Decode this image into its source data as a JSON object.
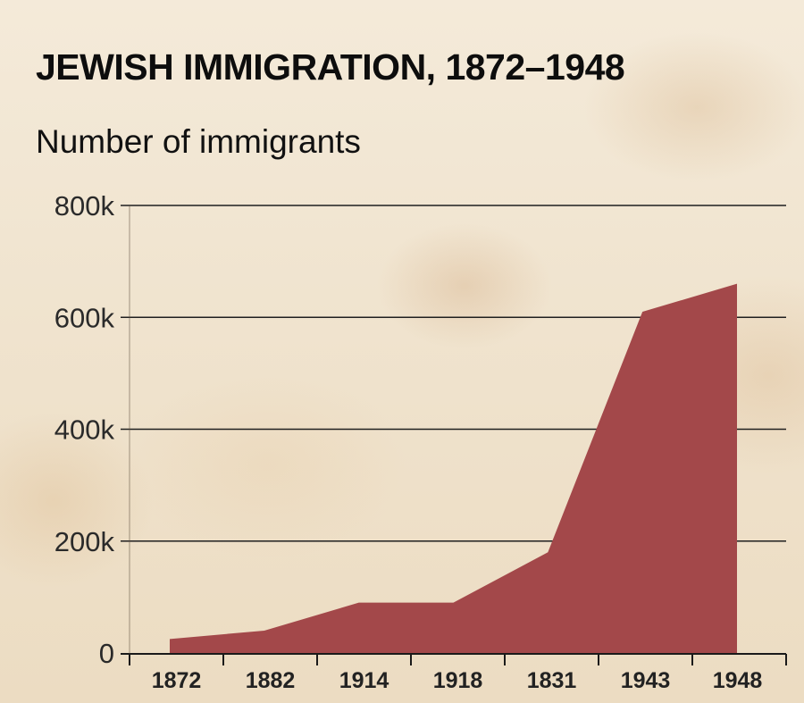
{
  "chart_data": {
    "type": "area",
    "title": "JEWISH IMMIGRATION, 1872–1948",
    "subtitle": "Number of immigrants",
    "xlabel": "",
    "ylabel": "",
    "categories": [
      "1872",
      "1882",
      "1914",
      "1918",
      "1831",
      "1943",
      "1948"
    ],
    "y_ticks": [
      {
        "value": 0,
        "label": "0"
      },
      {
        "value": 200000,
        "label": "200k"
      },
      {
        "value": 400000,
        "label": "400k"
      },
      {
        "value": 600000,
        "label": "600k"
      },
      {
        "value": 800000,
        "label": "800k"
      }
    ],
    "ylim": [
      0,
      800000
    ],
    "grid": true,
    "series": [
      {
        "values": [
          25000,
          40000,
          90000,
          90000,
          180000,
          610000,
          660000
        ],
        "color": "#a3484a"
      }
    ]
  }
}
